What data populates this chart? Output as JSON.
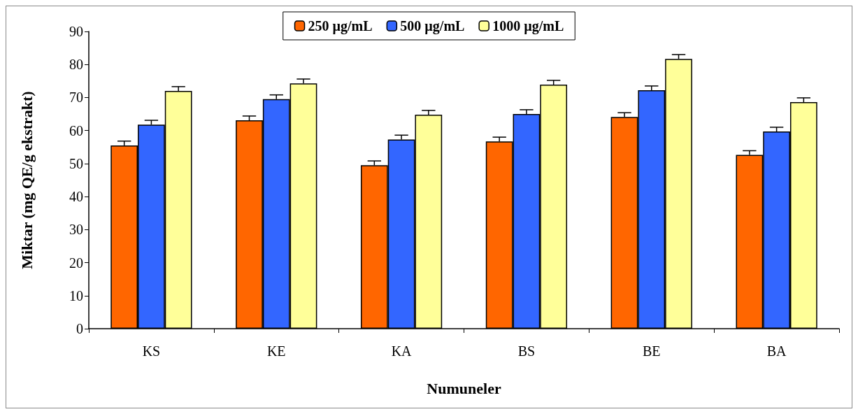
{
  "chart_data": {
    "type": "bar",
    "xlabel": "Numuneler",
    "ylabel": "Miktar (mg QE/g ekstrakt)",
    "categories": [
      "KS",
      "KE",
      "KA",
      "BS",
      "BE",
      "BA"
    ],
    "series": [
      {
        "name": "250 µg/mL",
        "color": "#ff6600",
        "values": [
          55.5,
          63.1,
          49.5,
          56.7,
          64.1,
          52.6
        ],
        "errors": [
          [
            55.5,
            56.8
          ],
          [
            63.1,
            64.4
          ],
          [
            49.5,
            50.8
          ],
          [
            56.7,
            58.0
          ],
          [
            64.1,
            65.4
          ],
          [
            52.6,
            53.9
          ]
        ]
      },
      {
        "name": "500 µg/mL",
        "color": "#3366ff",
        "values": [
          61.8,
          69.5,
          57.3,
          65.0,
          72.2,
          59.7
        ],
        "errors": [
          [
            61.8,
            63.1
          ],
          [
            69.5,
            70.8
          ],
          [
            57.3,
            58.6
          ],
          [
            65.0,
            66.3
          ],
          [
            72.2,
            73.5
          ],
          [
            59.7,
            61.0
          ]
        ]
      },
      {
        "name": "1000 µg/mL",
        "color": "#ffff99",
        "values": [
          72.0,
          74.3,
          64.8,
          73.9,
          81.7,
          68.6
        ],
        "errors": [
          [
            72.0,
            73.3
          ],
          [
            74.3,
            75.6
          ],
          [
            64.8,
            66.1
          ],
          [
            73.9,
            75.2
          ],
          [
            81.7,
            83.0
          ],
          [
            68.6,
            69.9
          ]
        ]
      }
    ],
    "ylim": [
      0,
      90
    ],
    "yticks": [
      0,
      10,
      20,
      30,
      40,
      50,
      60,
      70,
      80,
      90
    ],
    "grid": false,
    "legend": "top"
  }
}
